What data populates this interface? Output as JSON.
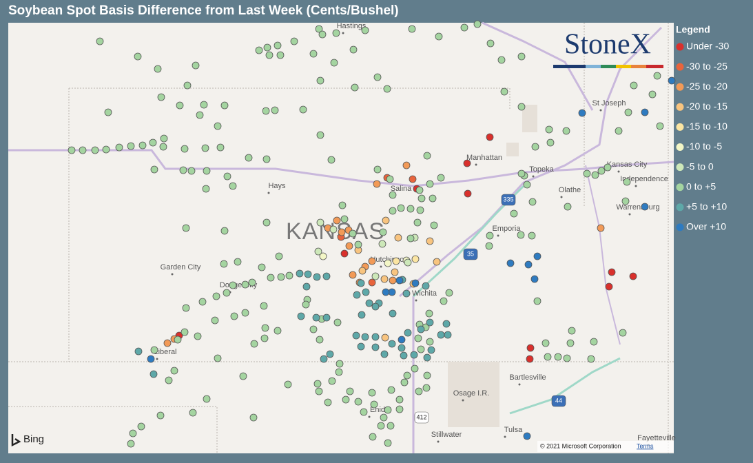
{
  "title": "Soybean Spot Basis Difference from Last Week (Cents/Bushel)",
  "legend": {
    "title": "Legend",
    "position": "right",
    "items": [
      {
        "label": "Under -30",
        "color": "#d9302c"
      },
      {
        "label": "-30 to -25",
        "color": "#e8643c"
      },
      {
        "label": "-25 to -20",
        "color": "#f29a57"
      },
      {
        "label": "-20 to -15",
        "color": "#f8c47f"
      },
      {
        "label": "-15 to -10",
        "color": "#fbe5a2"
      },
      {
        "label": "-10 to -5",
        "color": "#f3f6c6"
      },
      {
        "label": "-5 to 0",
        "color": "#cde8b9"
      },
      {
        "label": "0 to +5",
        "color": "#a4d4a0"
      },
      {
        "label": "+5 to +10",
        "color": "#5ea8a8"
      },
      {
        "label": "Over +10",
        "color": "#2e7bc0"
      }
    ]
  },
  "logo": "StoneX",
  "map_labels": {
    "state": "KANSAS",
    "places": [
      "Hastings",
      "St Joseph",
      "Manhattan",
      "Topeka",
      "Kansas City",
      "Independence",
      "Olathe",
      "Warrensburg",
      "Hays",
      "Salina",
      "Emporia",
      "Garden City",
      "Dodge City",
      "Hutchinson",
      "Wichita",
      "Liberal",
      "Bartlesville",
      "Osage I.R.",
      "Enid",
      "Stillwater",
      "Tulsa",
      "Fayetteville"
    ],
    "highways": [
      "335",
      "35",
      "44",
      "412"
    ]
  },
  "attribution": {
    "provider": "Bing",
    "copyright": "© 2021 Microsoft Corporation",
    "terms": "Terms"
  }
}
